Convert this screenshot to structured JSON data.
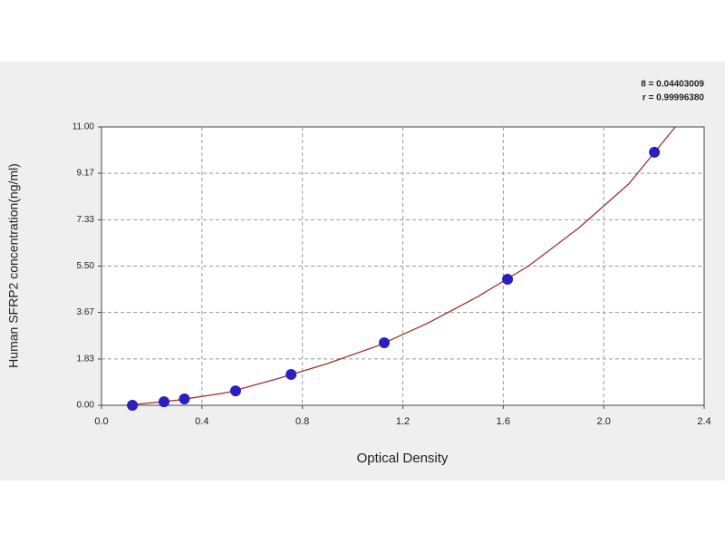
{
  "chart_data": {
    "type": "scatter",
    "x_label": "Optical Density",
    "y_label": "Human SFRP2 concentration(ng/ml)",
    "annotations": [
      "8 = 0.04403009",
      "r = 0.99996380"
    ],
    "xlim": [
      0,
      2.4
    ],
    "xticks": [
      {
        "value": 0,
        "label": "0.0"
      },
      0.4,
      0.8,
      1.2,
      1.6,
      {
        "value": 2,
        "label": "2.0"
      },
      2.4
    ],
    "ylim": [
      0,
      11
    ],
    "yticks": [
      {
        "value": 0,
        "label": "0.00"
      },
      1.83,
      3.67,
      {
        "value": 5.5,
        "label": "5.50"
      },
      7.33,
      9.17,
      {
        "value": 11,
        "label": "11.00"
      }
    ],
    "grid": true,
    "series": [
      {
        "type": "scatter",
        "color": "#2a1fc0",
        "x": [
          0.123,
          0.249,
          0.33,
          0.534,
          0.755,
          1.126,
          1.617,
          2.202
        ],
        "values": [
          0.0,
          0.14,
          0.25,
          0.57,
          1.22,
          2.47,
          4.98,
          10.0
        ]
      },
      {
        "type": "line",
        "color": "#a0302a",
        "x": [
          0.1,
          0.3,
          0.5,
          0.7,
          0.9,
          1.1,
          1.3,
          1.5,
          1.7,
          1.9,
          2.1,
          2.285
        ],
        "values": [
          0.0,
          0.2,
          0.5,
          1.05,
          1.65,
          2.35,
          3.25,
          4.3,
          5.5,
          7.0,
          8.75,
          11.0
        ]
      }
    ]
  }
}
